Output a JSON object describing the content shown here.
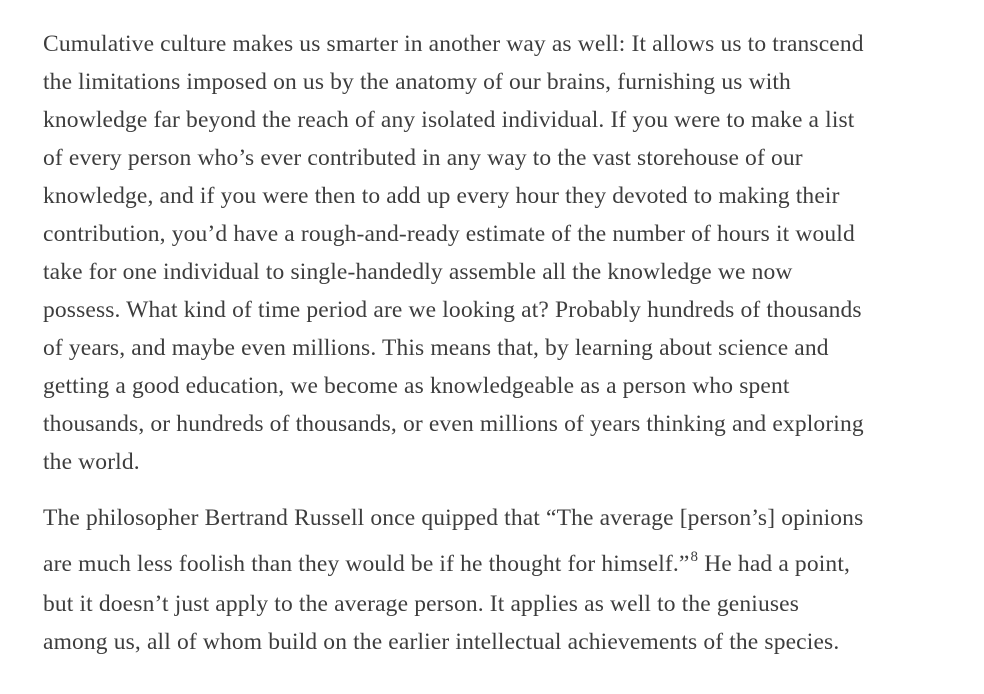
{
  "paragraphs": [
    {
      "lines": [
        "Cumulative culture makes us smarter in another way as well: It allows us to transcend",
        "the limitations imposed on us by the anatomy of our brains, furnishing us with",
        "knowledge far beyond the reach of any isolated individual. If you were to make a list",
        "of every person who’s ever contributed in any way to the vast storehouse of our",
        "knowledge, and if you were then to add up every hour they devoted to making their",
        "contribution, you’d have a rough-and-ready estimate of the number of hours it would",
        "take for one individual to single-handedly assemble all the knowledge we now",
        "possess. What kind of time period are we looking at? Probably hundreds of thousands",
        "of years, and maybe even millions. This means that, by learning about science and",
        "getting a good education, we become as knowledgeable as a person who spent",
        "thousands, or hundreds of thousands, or even millions of years thinking and exploring",
        "the world."
      ]
    },
    {
      "line1": "The philosopher Bertrand Russell once quipped that “The average [person’s] opinions",
      "line2_before": "are much less foolish than they would be if he thought for himself.”",
      "footnote": "8",
      "line2_after": " He had a point,",
      "line3": "but it doesn’t just apply to the average person. It applies as well to the geniuses",
      "line4": "among us, all of whom build on the earlier intellectual achievements of the species."
    }
  ]
}
